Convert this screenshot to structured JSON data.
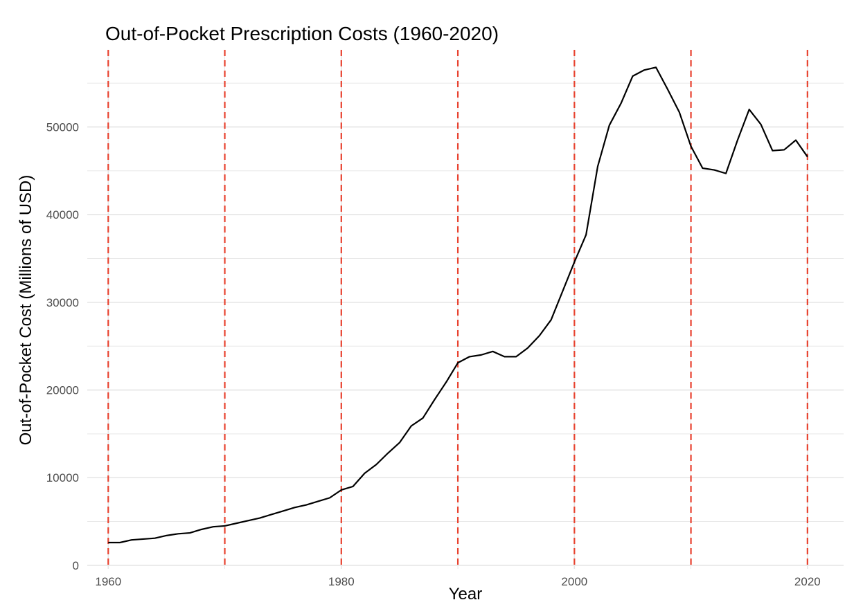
{
  "chart_data": {
    "type": "line",
    "title": "Out-of-Pocket Prescription Costs (1960-2020)",
    "xlabel": "Year",
    "ylabel": "Out-of-Pocket Cost (Millions of USD)",
    "xlim": [
      1958.2,
      2023.1
    ],
    "ylim": [
      -400,
      58800
    ],
    "x_ticks": [
      1960,
      1980,
      2000,
      2020
    ],
    "y_ticks": [
      0,
      10000,
      20000,
      30000,
      40000,
      50000
    ],
    "grid": true,
    "reference_lines": {
      "orientation": "vertical",
      "style": "dashed",
      "x": [
        1960,
        1970,
        1980,
        1990,
        2000,
        2010,
        2020
      ]
    },
    "series": [
      {
        "x": [
          1960,
          1961,
          1962,
          1963,
          1964,
          1965,
          1966,
          1967,
          1968,
          1969,
          1970,
          1971,
          1972,
          1973,
          1974,
          1975,
          1976,
          1977,
          1978,
          1979,
          1980,
          1981,
          1982,
          1983,
          1984,
          1985,
          1986,
          1987,
          1988,
          1989,
          1990,
          1991,
          1992,
          1993,
          1994,
          1995,
          1996,
          1997,
          1998,
          1999,
          2000,
          2001,
          2002,
          2003,
          2004,
          2005,
          2006,
          2007,
          2008,
          2009,
          2010,
          2011,
          2012,
          2013,
          2014,
          2015,
          2016,
          2017,
          2018,
          2019,
          2020
        ],
        "values": [
          2600,
          2600,
          2900,
          3000,
          3100,
          3400,
          3600,
          3700,
          4100,
          4400,
          4500,
          4800,
          5100,
          5400,
          5800,
          6200,
          6600,
          6900,
          7300,
          7700,
          8600,
          9000,
          10500,
          11500,
          12800,
          14000,
          15900,
          16800,
          18900,
          20900,
          23100,
          23800,
          24000,
          24400,
          23800,
          23800,
          24800,
          26200,
          28000,
          31300,
          34600,
          37700,
          45500,
          50200,
          52700,
          55800,
          56500,
          56800,
          54300,
          51700,
          47800,
          45300,
          45100,
          44700,
          48500,
          52000,
          50300,
          47300,
          47400,
          48500,
          46600
        ]
      }
    ],
    "colors": {
      "line": "#000000",
      "reference_line": "#e8422f",
      "grid": "#e5e5e5",
      "background": "#ffffff"
    }
  }
}
